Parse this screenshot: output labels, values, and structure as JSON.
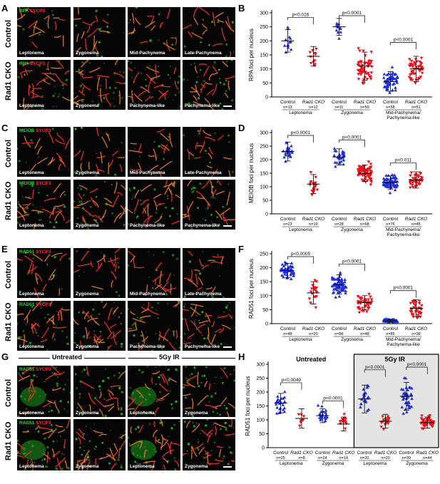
{
  "panels": {
    "A": {
      "letter": "A",
      "stain_green": "RPA",
      "stain_red": "SYCP3",
      "rows": [
        "Control",
        "Rad1 CKO"
      ],
      "stages": [
        [
          "Leptonema",
          "Zygonema",
          "Mid-Pachynema",
          "Late-Pachynema"
        ],
        [
          "Leptonema",
          "Zygonema",
          "Pachynema-like",
          "Pachynema-like"
        ]
      ]
    },
    "C": {
      "letter": "C",
      "stain_green": "MEIOB",
      "stain_red": "SYCP3",
      "rows": [
        "Control",
        "Rad1 CKO"
      ],
      "stages": [
        [
          "Leptonema",
          "Zygonema",
          "Mid-Pachynema",
          "Late-Pachynema"
        ],
        [
          "Leptonema",
          "Zygonema",
          "Pachynema-like",
          "Pachynema-like"
        ]
      ]
    },
    "E": {
      "letter": "E",
      "stain_green": "RAD51",
      "stain_red": "SYCP3",
      "rows": [
        "Control",
        "Rad1 CKO"
      ],
      "stages": [
        [
          "Leptonema",
          "Zygonema",
          "Mid-Pachynema",
          "Late-Pachynema"
        ],
        [
          "Leptonema",
          "Zygonema",
          "Pachynema-like",
          "Pachynema-like"
        ]
      ]
    },
    "G": {
      "letter": "G",
      "stain_green": "RAD51",
      "stain_red": "SYCP3",
      "rows": [
        "Control",
        "Rad1 CKO"
      ],
      "group_labels": [
        "Untreated",
        "5Gy IR"
      ],
      "stages": [
        [
          "Leptonema",
          "Zygonema",
          "Leptonema",
          "Zygonema"
        ],
        [
          "Leptonema",
          "Zygonema",
          "Leptonema",
          "Zygonema"
        ]
      ]
    }
  },
  "chart_data": [
    {
      "panel": "B",
      "type": "scatter",
      "ylabel": "RPA foci per nucleus",
      "ylim": [
        0,
        300
      ],
      "yticks": [
        0,
        50,
        100,
        150,
        200,
        250,
        300
      ],
      "categories": [
        "Control",
        "Rad1 CKO",
        "Control",
        "Rad1 CKO",
        "Control",
        "Rad1 CKO"
      ],
      "ns": [
        "n=13",
        "n=12",
        "n=11",
        "n=59",
        "n=58",
        "n=51"
      ],
      "stage_labels": [
        "Leptonema",
        "Zygonema",
        "Mid-Pachynema/ Pachynema-like"
      ],
      "pvalues": [
        "p<0.016",
        "p<0.0001",
        "p<0.0001"
      ],
      "means": [
        200,
        145,
        250,
        110,
        55,
        100
      ],
      "sds": [
        40,
        35,
        30,
        50,
        35,
        45
      ]
    },
    {
      "panel": "D",
      "type": "scatter",
      "ylabel": "MEIOB foci per nucleus",
      "ylim": [
        0,
        300
      ],
      "yticks": [
        0,
        50,
        100,
        150,
        200,
        250,
        300
      ],
      "categories": [
        "Control",
        "Rad1 CKO",
        "Control",
        "Rad1 CKO",
        "Control",
        "Rad1 CKO"
      ],
      "ns": [
        "n=23",
        "n=19",
        "n=28",
        "n=68",
        "n=76",
        "n=45"
      ],
      "stage_labels": [
        "Leptonema",
        "Zygonema",
        "Mid-Pachynema/ Pachynema-like"
      ],
      "pvalues": [
        "p<0.0001",
        "p<0.0001",
        "p<0.011"
      ],
      "means": [
        230,
        110,
        210,
        150,
        115,
        125
      ],
      "sds": [
        35,
        35,
        30,
        30,
        25,
        30
      ]
    },
    {
      "panel": "F",
      "type": "scatter",
      "ylabel": "RAD51 foci per nucleus",
      "ylim": [
        0,
        250
      ],
      "yticks": [
        0,
        50,
        100,
        150,
        200,
        250
      ],
      "categories": [
        "Control",
        "Rad1 CKO",
        "Control",
        "Rad1 CKO",
        "Control",
        "Rad1 CKO"
      ],
      "ns": [
        "n=48",
        "n=20",
        "n=86",
        "n=48",
        "n=85",
        "n=38"
      ],
      "stage_labels": [
        "Leptonema",
        "Zygonema",
        "Mid-Pachynema/ Pachynema-like"
      ],
      "pvalues": [
        "p<0.0005",
        "p<0.0001",
        "p<0.0001"
      ],
      "means": [
        190,
        110,
        140,
        75,
        10,
        55
      ],
      "sds": [
        25,
        40,
        35,
        25,
        5,
        30
      ]
    },
    {
      "panel": "H",
      "type": "scatter",
      "ylabel": "RAD51 foci per nucleus",
      "ylim": [
        0,
        300
      ],
      "yticks": [
        0,
        50,
        100,
        150,
        200,
        250,
        300
      ],
      "categories": [
        "Control",
        "Rad1 CKO",
        "Control",
        "Rad1 CKO",
        "Control",
        "Rad1 CKO",
        "Control",
        "Rad1 CKO"
      ],
      "ns": [
        "n=25",
        "n=8",
        "n=24",
        "n=14",
        "n=20",
        "n=20",
        "n=39",
        "n=44"
      ],
      "stage_labels": [
        "Leptonema",
        "Zygonema",
        "Leptonema",
        "Zygonema"
      ],
      "group_labels": [
        "Untreated",
        "5Gy IR"
      ],
      "pvalues": [
        "p<0.0049",
        "p<0.0001",
        "p<0.0001",
        "p<0.0001"
      ],
      "means": [
        160,
        105,
        115,
        85,
        175,
        95,
        185,
        90
      ],
      "sds": [
        35,
        35,
        25,
        25,
        50,
        25,
        50,
        20
      ]
    }
  ],
  "colors": {
    "control": "#1f2fd6",
    "cko": "#e8141c",
    "shaded": "#e4e4e4"
  }
}
